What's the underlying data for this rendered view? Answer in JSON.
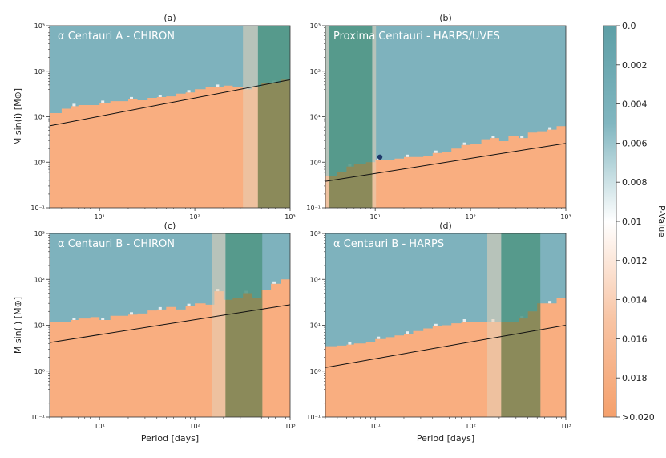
{
  "colors": {
    "sky": "#7eb2bd",
    "orange": "#f9ae80",
    "band_light": "#cfc1a6",
    "band_dark": "#4f9584",
    "band_overlap": "#8b8a5a",
    "trend": "#111111",
    "marker": "#1f3a6b"
  },
  "colorbar": {
    "label": "P-Value",
    "ticks": [
      "0.0",
      "0.002",
      "0.004",
      "0.006",
      "0.008",
      "0.01",
      "0.012",
      "0.014",
      "0.016",
      "0.018",
      ">0.020"
    ]
  },
  "chart_data": [
    {
      "type": "heatmap",
      "panel_tag": "(a)",
      "title": "α Centauri A - CHIRON",
      "xlabel": "",
      "ylabel": "M sin(i) [M⊕]",
      "xscale": "log",
      "yscale": "log",
      "xlim": [
        3,
        1000
      ],
      "ylim": [
        0.1,
        1000
      ],
      "x_ticks": [
        "10¹",
        "10²",
        "10³"
      ],
      "y_ticks": [
        "10⁻¹",
        "10⁰",
        "10¹",
        "10²",
        "10³"
      ],
      "boundary": {
        "period": [
          3,
          4,
          5,
          6,
          8,
          10,
          13,
          16,
          20,
          25,
          32,
          40,
          50,
          63,
          80,
          100,
          130,
          160,
          200,
          250,
          320,
          400,
          500,
          630,
          800,
          1000
        ],
        "msini": [
          12,
          15,
          17,
          18,
          18,
          20,
          22,
          22,
          24,
          23,
          26,
          27,
          28,
          32,
          34,
          40,
          45,
          45,
          48,
          45,
          40,
          45,
          55,
          55,
          65,
          65
        ]
      },
      "bands": [
        {
          "tone": "light",
          "from": 320,
          "to": 460
        },
        {
          "tone": "dark",
          "from": 460,
          "to": 1000
        }
      ],
      "trend": {
        "period": [
          3,
          1000
        ],
        "msini": [
          6.3,
          65
        ]
      },
      "point": null
    },
    {
      "type": "heatmap",
      "panel_tag": "(b)",
      "title": "Proxima Centauri - HARPS/UVES",
      "xlabel": "",
      "ylabel": "",
      "xscale": "log",
      "yscale": "log",
      "xlim": [
        3,
        1000
      ],
      "ylim": [
        0.1,
        1000
      ],
      "x_ticks": [
        "10¹",
        "10²",
        "10³"
      ],
      "y_ticks": [
        "10⁻¹",
        "10⁰",
        "10¹",
        "10²",
        "10³"
      ],
      "boundary": {
        "period": [
          3,
          4,
          5,
          6,
          8,
          10,
          13,
          16,
          20,
          25,
          32,
          40,
          50,
          63,
          80,
          100,
          130,
          160,
          200,
          250,
          320,
          400,
          500,
          630,
          800,
          1000
        ],
        "msini": [
          0.5,
          0.6,
          0.8,
          0.9,
          1.0,
          1.1,
          1.1,
          1.2,
          1.3,
          1.3,
          1.4,
          1.6,
          1.7,
          2.0,
          2.4,
          2.5,
          3.2,
          3.4,
          2.9,
          3.7,
          3.4,
          4.5,
          4.8,
          5.2,
          6.2,
          7.5
        ]
      },
      "bands": [
        {
          "tone": "light",
          "from": 3,
          "to": 3.3
        },
        {
          "tone": "dark",
          "from": 3.3,
          "to": 9.3
        },
        {
          "tone": "light",
          "from": 9.3,
          "to": 10.2
        }
      ],
      "trend": {
        "period": [
          3,
          1000
        ],
        "msini": [
          0.38,
          2.6
        ]
      },
      "point": {
        "period": 11.2,
        "msini": 1.3
      }
    },
    {
      "type": "heatmap",
      "panel_tag": "(c)",
      "title": "α Centauri B - CHIRON",
      "xlabel": "Period [days]",
      "ylabel": "M sin(i) [M⊕]",
      "xscale": "log",
      "yscale": "log",
      "xlim": [
        3,
        1000
      ],
      "ylim": [
        0.1,
        1000
      ],
      "x_ticks": [
        "10¹",
        "10²",
        "10³"
      ],
      "y_ticks": [
        "10⁻¹",
        "10⁰",
        "10¹",
        "10²",
        "10³"
      ],
      "boundary": {
        "period": [
          3,
          4,
          5,
          6,
          8,
          10,
          13,
          16,
          20,
          25,
          32,
          40,
          50,
          63,
          80,
          100,
          130,
          160,
          200,
          250,
          320,
          400,
          500,
          630,
          800,
          1000
        ],
        "msini": [
          12,
          12,
          13,
          14,
          15,
          13,
          16,
          16,
          17,
          18,
          21,
          22,
          25,
          22,
          26,
          30,
          28,
          55,
          36,
          40,
          50,
          40,
          60,
          80,
          100,
          90
        ]
      },
      "bands": [
        {
          "tone": "light",
          "from": 150,
          "to": 210
        },
        {
          "tone": "dark",
          "from": 210,
          "to": 510
        }
      ],
      "trend": {
        "period": [
          3,
          1000
        ],
        "msini": [
          4.2,
          28
        ]
      },
      "point": null
    },
    {
      "type": "heatmap",
      "panel_tag": "(d)",
      "title": "α Centauri B - HARPS",
      "xlabel": "Period [days]",
      "ylabel": "",
      "xscale": "log",
      "yscale": "log",
      "xlim": [
        3,
        1000
      ],
      "ylim": [
        0.1,
        1000
      ],
      "x_ticks": [
        "10¹",
        "10²",
        "10³"
      ],
      "y_ticks": [
        "10⁻¹",
        "10⁰",
        "10¹",
        "10²",
        "10³"
      ],
      "boundary": {
        "period": [
          3,
          4,
          5,
          6,
          8,
          10,
          13,
          16,
          20,
          25,
          32,
          40,
          50,
          63,
          80,
          100,
          130,
          160,
          200,
          250,
          320,
          400,
          500,
          630,
          800,
          1000
        ],
        "msini": [
          3.5,
          3.6,
          3.8,
          4.0,
          4.3,
          5.0,
          5.5,
          6.0,
          6.5,
          7.5,
          8.5,
          9.5,
          10,
          11,
          12,
          12,
          12,
          12,
          12,
          12,
          14,
          20,
          30,
          30,
          40,
          50
        ]
      },
      "bands": [
        {
          "tone": "light",
          "from": 150,
          "to": 210
        },
        {
          "tone": "dark",
          "from": 210,
          "to": 540
        }
      ],
      "trend": {
        "period": [
          3,
          1000
        ],
        "msini": [
          1.2,
          10
        ]
      },
      "point": null
    }
  ]
}
